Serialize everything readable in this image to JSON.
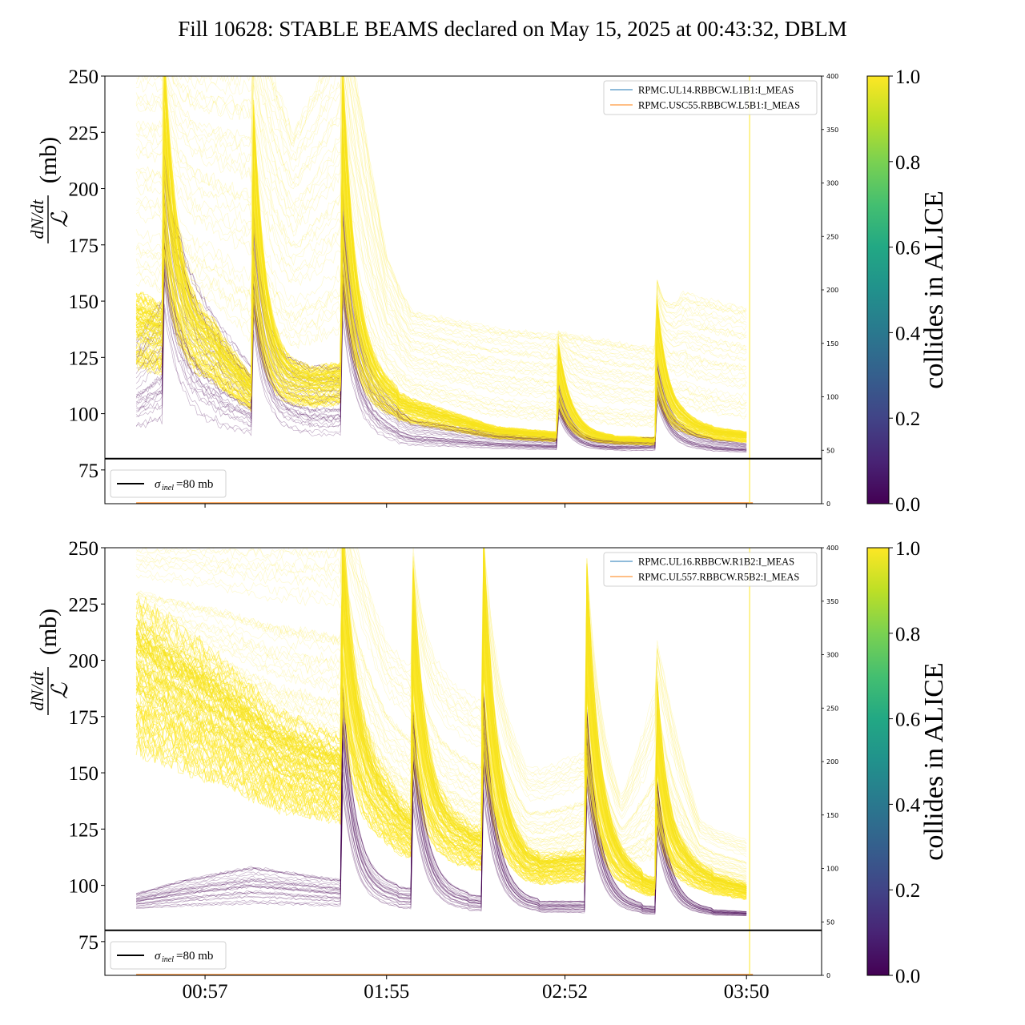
{
  "figure": {
    "title": "Fill 10628: STABLE BEAMS declared on May 15, 2025 at 00:43:32, DBLM"
  },
  "colors": {
    "viridis": [
      "#440154",
      "#482475",
      "#414487",
      "#355f8d",
      "#2a788e",
      "#21918c",
      "#22a884",
      "#44bf70",
      "#7ad151",
      "#bddf26",
      "#fde725"
    ],
    "blm_line_blue": "#1f77b4",
    "blm_line_orange": "#ff7f0e",
    "sigma_line": "#000000"
  },
  "chart_data": [
    {
      "type": "line",
      "ylabel_frac_num": "dN/dt",
      "ylabel_frac_den": "ℒ",
      "ylabel_unit": "(mb)",
      "ylim": [
        60,
        250
      ],
      "yticks": [
        "75",
        "100",
        "125",
        "150",
        "175",
        "200",
        "225",
        "250"
      ],
      "y2lim": [
        0,
        400
      ],
      "y2ticks": [
        "0",
        "50",
        "100",
        "150",
        "200",
        "250",
        "300",
        "350",
        "400"
      ],
      "xrange": [
        "00:25",
        "04:14"
      ],
      "xticks": [],
      "colorbar_label": "collides in ALICE",
      "colorbar_ticks": [
        "0.0",
        "0.2",
        "0.4",
        "0.6",
        "0.8",
        "1.0"
      ],
      "colorbar_range": [
        0.0,
        1.0
      ],
      "legend_position": "top-right",
      "legend": [
        "RPMC.UL14.RBBCW.L1B1:I_MEAS",
        "RPMC.USC55.RBBCW.L5B1:I_MEAS"
      ],
      "sigma_legend_symbol": "σ",
      "sigma_legend_sub": "inel",
      "sigma_legend_value": "=80 mb",
      "sigma_legend_position": "bottom-left",
      "sigma_inel": 80,
      "spikes": [
        {
          "t": "00:44",
          "peak": 250
        },
        {
          "t": "01:12",
          "peak": 250
        },
        {
          "t": "01:41",
          "peak": 250
        },
        {
          "t": "02:50",
          "peak": 130
        },
        {
          "t": "03:21",
          "peak": 158
        },
        {
          "t": "03:51",
          "peak": 230
        }
      ],
      "yellow_envelope": [
        {
          "t": "00:35",
          "v": 250
        },
        {
          "t": "00:50",
          "v": 250
        },
        {
          "t": "01:12",
          "v": 250
        },
        {
          "t": "01:25",
          "v": 210
        },
        {
          "t": "01:41",
          "v": 250
        },
        {
          "t": "01:55",
          "v": 160
        },
        {
          "t": "02:03",
          "v": 140
        },
        {
          "t": "02:30",
          "v": 132
        },
        {
          "t": "03:00",
          "v": 128
        },
        {
          "t": "03:20",
          "v": 124
        },
        {
          "t": "03:30",
          "v": 145
        },
        {
          "t": "03:50",
          "v": 140
        }
      ],
      "yellow_core": [
        {
          "t": "00:35",
          "v": 140
        },
        {
          "t": "01:00",
          "v": 128
        },
        {
          "t": "01:12",
          "v": 110
        },
        {
          "t": "01:41",
          "v": 115
        },
        {
          "t": "02:03",
          "v": 102
        },
        {
          "t": "02:30",
          "v": 92
        },
        {
          "t": "03:00",
          "v": 89
        },
        {
          "t": "03:20",
          "v": 88
        },
        {
          "t": "03:30",
          "v": 93
        },
        {
          "t": "03:50",
          "v": 90
        }
      ],
      "purple_band": [
        {
          "t": "00:35",
          "v": 125
        },
        {
          "t": "00:49",
          "v": 150
        },
        {
          "t": "01:12",
          "v": 115
        },
        {
          "t": "01:41",
          "v": 115
        },
        {
          "t": "02:03",
          "v": 95
        },
        {
          "t": "02:30",
          "v": 90
        },
        {
          "t": "03:00",
          "v": 87
        },
        {
          "t": "03:30",
          "v": 89
        },
        {
          "t": "03:50",
          "v": 86
        }
      ],
      "base_level": [
        {
          "t": "00:35",
          "v": 85
        },
        {
          "t": "01:41",
          "v": 84
        },
        {
          "t": "02:30",
          "v": 83
        },
        {
          "t": "03:50",
          "v": 82
        }
      ],
      "blm_spike_t": "03:51"
    },
    {
      "type": "line",
      "ylabel_frac_num": "dN/dt",
      "ylabel_frac_den": "ℒ",
      "ylabel_unit": "(mb)",
      "ylim": [
        60,
        250
      ],
      "yticks": [
        "75",
        "100",
        "125",
        "150",
        "175",
        "200",
        "225",
        "250"
      ],
      "y2lim": [
        0,
        400
      ],
      "y2ticks": [
        "0",
        "50",
        "100",
        "150",
        "200",
        "250",
        "300",
        "350",
        "400"
      ],
      "xrange": [
        "00:25",
        "04:14"
      ],
      "xticks": [
        "00:57",
        "01:55",
        "02:52",
        "03:50"
      ],
      "colorbar_label": "collides in ALICE",
      "colorbar_ticks": [
        "0.0",
        "0.2",
        "0.4",
        "0.6",
        "0.8",
        "1.0"
      ],
      "colorbar_range": [
        0.0,
        1.0
      ],
      "legend_position": "top-right",
      "legend": [
        "RPMC.UL16.RBBCW.R1B2:I_MEAS",
        "RPMC.UL557.RBBCW.R5B2:I_MEAS"
      ],
      "sigma_legend_symbol": "σ",
      "sigma_legend_sub": "inel",
      "sigma_legend_value": "=80 mb",
      "sigma_legend_position": "bottom-left",
      "sigma_inel": 80,
      "spikes": [
        {
          "t": "01:41",
          "peak": 250
        },
        {
          "t": "02:03",
          "peak": 250
        },
        {
          "t": "02:26",
          "peak": 250
        },
        {
          "t": "02:59",
          "peak": 240
        },
        {
          "t": "03:21",
          "peak": 200
        },
        {
          "t": "03:51",
          "peak": 140
        }
      ],
      "yellow_envelope": [
        {
          "t": "00:35",
          "v": 250
        },
        {
          "t": "01:12",
          "v": 250
        },
        {
          "t": "01:41",
          "v": 250
        },
        {
          "t": "01:55",
          "v": 200
        },
        {
          "t": "02:03",
          "v": 190
        },
        {
          "t": "02:26",
          "v": 175
        },
        {
          "t": "02:40",
          "v": 145
        },
        {
          "t": "02:59",
          "v": 155
        },
        {
          "t": "03:10",
          "v": 130
        },
        {
          "t": "03:21",
          "v": 180
        },
        {
          "t": "03:35",
          "v": 125
        },
        {
          "t": "03:50",
          "v": 118
        }
      ],
      "yellow_core": [
        {
          "t": "00:35",
          "v": 200
        },
        {
          "t": "01:00",
          "v": 180
        },
        {
          "t": "01:20",
          "v": 160
        },
        {
          "t": "01:41",
          "v": 150
        },
        {
          "t": "02:03",
          "v": 125
        },
        {
          "t": "02:26",
          "v": 118
        },
        {
          "t": "02:40",
          "v": 108
        },
        {
          "t": "02:59",
          "v": 110
        },
        {
          "t": "03:20",
          "v": 100
        },
        {
          "t": "03:30",
          "v": 105
        },
        {
          "t": "03:50",
          "v": 98
        }
      ],
      "purple_band": [
        {
          "t": "00:35",
          "v": 95
        },
        {
          "t": "00:50",
          "v": 100
        },
        {
          "t": "01:12",
          "v": 105
        },
        {
          "t": "01:41",
          "v": 100
        },
        {
          "t": "02:03",
          "v": 97
        },
        {
          "t": "02:26",
          "v": 94
        },
        {
          "t": "02:40",
          "v": 92
        },
        {
          "t": "03:00",
          "v": 92
        },
        {
          "t": "03:20",
          "v": 90
        },
        {
          "t": "03:50",
          "v": 88
        }
      ],
      "base_level": [
        {
          "t": "00:35",
          "v": 88
        },
        {
          "t": "01:41",
          "v": 88
        },
        {
          "t": "02:30",
          "v": 87
        },
        {
          "t": "03:50",
          "v": 86
        }
      ],
      "blm_spike_t": "03:51"
    }
  ]
}
